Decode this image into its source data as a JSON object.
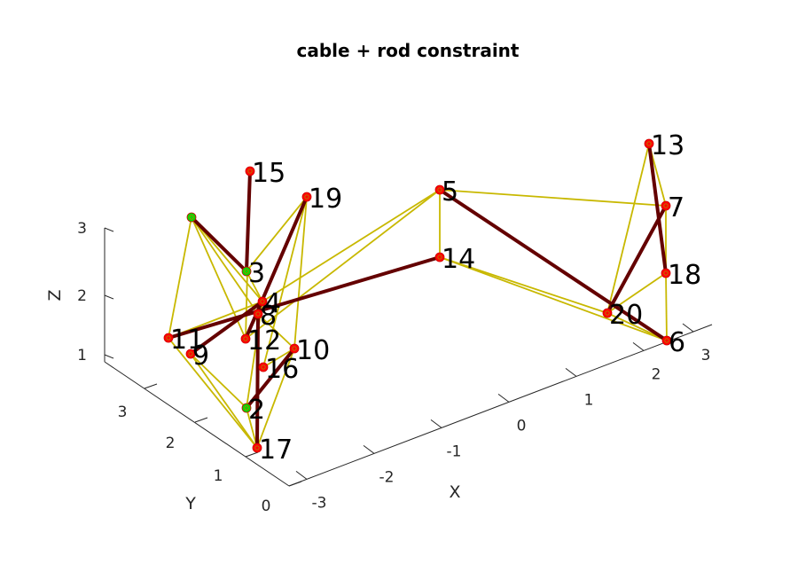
{
  "chart_data": {
    "type": "network3d",
    "title": "cable + rod constraint",
    "xlabel": "X",
    "ylabel": "Y",
    "zlabel": "Z",
    "x_ticks": [
      "-3",
      "-2",
      "-1",
      "0",
      "1",
      "2",
      "3"
    ],
    "y_ticks": [
      "0",
      "1",
      "2",
      "3"
    ],
    "z_ticks": [
      "1",
      "2",
      "3"
    ],
    "colors": {
      "fixed_node": "#00dd00",
      "free_node": "#ff0000",
      "rod": "#640000",
      "cable": "#c8b800"
    },
    "nodes": [
      {
        "id": "1",
        "label": "",
        "fixed": true
      },
      {
        "id": "2",
        "label": "2",
        "fixed": true
      },
      {
        "id": "3",
        "label": "3",
        "fixed": true
      },
      {
        "id": "4",
        "label": "4",
        "fixed": false
      },
      {
        "id": "5",
        "label": "5",
        "fixed": false
      },
      {
        "id": "6",
        "label": "6",
        "fixed": false
      },
      {
        "id": "7",
        "label": "7",
        "fixed": false
      },
      {
        "id": "8",
        "label": "8",
        "fixed": false
      },
      {
        "id": "9",
        "label": "9",
        "fixed": false
      },
      {
        "id": "10",
        "label": "10",
        "fixed": false
      },
      {
        "id": "11",
        "label": "11",
        "fixed": false
      },
      {
        "id": "12",
        "label": "12",
        "fixed": false
      },
      {
        "id": "13",
        "label": "13",
        "fixed": false
      },
      {
        "id": "14",
        "label": "14",
        "fixed": false
      },
      {
        "id": "15",
        "label": "15",
        "fixed": false
      },
      {
        "id": "16",
        "label": "16",
        "fixed": false
      },
      {
        "id": "17",
        "label": "17",
        "fixed": false
      },
      {
        "id": "18",
        "label": "18",
        "fixed": false
      },
      {
        "id": "19",
        "label": "19",
        "fixed": false
      },
      {
        "id": "20",
        "label": "20",
        "fixed": false
      }
    ],
    "rods": [
      [
        "1",
        "3"
      ],
      [
        "3",
        "15"
      ],
      [
        "4",
        "9"
      ],
      [
        "11",
        "14"
      ],
      [
        "5",
        "6"
      ],
      [
        "7",
        "20"
      ],
      [
        "13",
        "18"
      ],
      [
        "19",
        "12"
      ],
      [
        "2",
        "10"
      ],
      [
        "17",
        "8"
      ]
    ],
    "cables": [
      [
        "1",
        "11"
      ],
      [
        "1",
        "12"
      ],
      [
        "1",
        "8"
      ],
      [
        "1",
        "4"
      ],
      [
        "3",
        "4"
      ],
      [
        "3",
        "19"
      ],
      [
        "15",
        "12"
      ],
      [
        "19",
        "16"
      ],
      [
        "19",
        "10"
      ],
      [
        "11",
        "17"
      ],
      [
        "9",
        "2"
      ],
      [
        "9",
        "17"
      ],
      [
        "2",
        "4"
      ],
      [
        "2",
        "17"
      ],
      [
        "16",
        "10"
      ],
      [
        "17",
        "10"
      ],
      [
        "12",
        "8"
      ],
      [
        "8",
        "10"
      ],
      [
        "4",
        "5"
      ],
      [
        "12",
        "5"
      ],
      [
        "5",
        "14"
      ],
      [
        "5",
        "7"
      ],
      [
        "14",
        "20"
      ],
      [
        "14",
        "6"
      ],
      [
        "13",
        "7"
      ],
      [
        "13",
        "20"
      ],
      [
        "7",
        "18"
      ],
      [
        "18",
        "6"
      ],
      [
        "18",
        "20"
      ],
      [
        "20",
        "6"
      ],
      [
        "4",
        "11"
      ],
      [
        "4",
        "12"
      ]
    ]
  }
}
